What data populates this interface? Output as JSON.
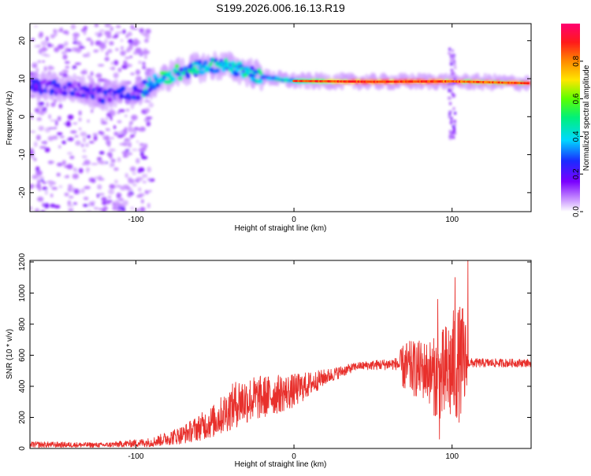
{
  "title": "S199.2026.006.16.13.R19",
  "chart_data": [
    {
      "type": "heatmap",
      "xlabel": "Height of straight line (km)",
      "ylabel": "Frequency (Hz)",
      "xlim": [
        -167,
        150
      ],
      "ylim": [
        -25,
        24.5
      ],
      "xticks": [
        -100,
        0,
        100
      ],
      "yticks": [
        -20,
        -10,
        0,
        10,
        20
      ],
      "ridge_frequency_hz": [
        {
          "x": -165,
          "y": 8
        },
        {
          "x": -140,
          "y": 7.5
        },
        {
          "x": -120,
          "y": 5.5
        },
        {
          "x": -100,
          "y": 6.2
        },
        {
          "x": -90,
          "y": 8.5
        },
        {
          "x": -75,
          "y": 11.5
        },
        {
          "x": -60,
          "y": 13
        },
        {
          "x": -45,
          "y": 13.5
        },
        {
          "x": -30,
          "y": 12
        },
        {
          "x": -20,
          "y": 10.5
        },
        {
          "x": 0,
          "y": 9.4
        },
        {
          "x": 50,
          "y": 9.2
        },
        {
          "x": 100,
          "y": 9.3
        },
        {
          "x": 148,
          "y": 8.8
        }
      ],
      "colorbar": {
        "label": "Normalized spectral amplitude",
        "range": [
          0,
          1
        ],
        "ticks": [
          0.0,
          0.2,
          0.4,
          0.6,
          0.8
        ],
        "tick_labels": [
          "0.0",
          "0.2",
          "0.4",
          "0.6",
          "0.8"
        ]
      }
    },
    {
      "type": "line",
      "xlabel": "Height of straight line (km)",
      "ylabel": "SNR (10 * v/v)",
      "xlim": [
        -167,
        150
      ],
      "ylim": [
        0,
        1210
      ],
      "xticks": [
        -100,
        0,
        100
      ],
      "yticks": [
        0,
        200,
        400,
        600,
        800,
        1000,
        1200
      ],
      "color": "#e8302c",
      "envelope": [
        {
          "x": -167,
          "mean": 25,
          "amp": 20
        },
        {
          "x": -120,
          "mean": 22,
          "amp": 15
        },
        {
          "x": -90,
          "mean": 40,
          "amp": 30
        },
        {
          "x": -70,
          "mean": 90,
          "amp": 60
        },
        {
          "x": -50,
          "mean": 180,
          "amp": 110
        },
        {
          "x": -35,
          "mean": 300,
          "amp": 160
        },
        {
          "x": -20,
          "mean": 330,
          "amp": 140
        },
        {
          "x": 0,
          "mean": 370,
          "amp": 110
        },
        {
          "x": 20,
          "mean": 460,
          "amp": 50
        },
        {
          "x": 40,
          "mean": 530,
          "amp": 25
        },
        {
          "x": 65,
          "mean": 545,
          "amp": 40
        },
        {
          "x": 70,
          "mean": 520,
          "amp": 170
        },
        {
          "x": 85,
          "mean": 500,
          "amp": 200
        },
        {
          "x": 92,
          "mean": 430,
          "amp": 300
        },
        {
          "x": 100,
          "mean": 520,
          "amp": 370
        },
        {
          "x": 108,
          "mean": 560,
          "amp": 380
        },
        {
          "x": 110,
          "mean": 550,
          "amp": 30
        },
        {
          "x": 150,
          "mean": 550,
          "amp": 25
        }
      ],
      "labeled_peaks": [
        {
          "x": 91,
          "y": 960
        },
        {
          "x": 102,
          "y": 1100
        },
        {
          "x": 110,
          "y": 1210
        },
        {
          "x": 92,
          "y": 60
        }
      ]
    }
  ]
}
